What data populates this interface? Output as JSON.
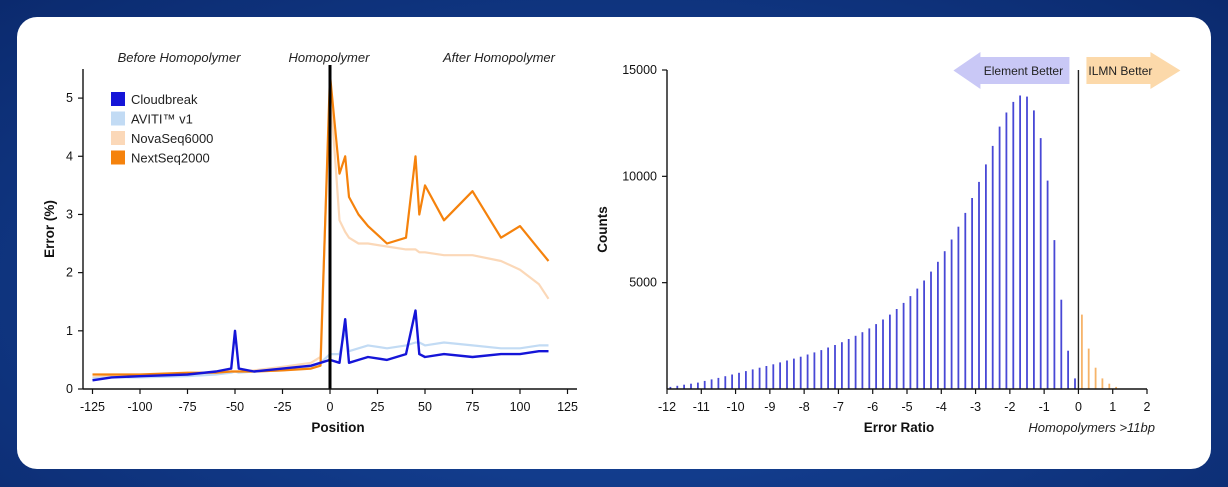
{
  "chart_data": [
    {
      "type": "line",
      "xlabel": "Position",
      "ylabel": "Error (%)",
      "xlim": [
        -130,
        130
      ],
      "ylim": [
        0,
        5.5
      ],
      "xticks": [
        "-125",
        "-100",
        "-75",
        "-50",
        "-25",
        "0",
        "25",
        "50",
        "75",
        "100",
        "125"
      ],
      "yticks": [
        "0",
        "1",
        "2",
        "3",
        "4",
        "5"
      ],
      "sections": [
        "Before Homopolymer",
        "Homopolymer",
        "After Homopolymer"
      ],
      "legend_position": "top-left",
      "series": [
        {
          "name": "Cloudbreak",
          "color": "#1515d8"
        },
        {
          "name": "AVITI™ v1",
          "color": "#c2dbf4"
        },
        {
          "name": "NovaSeq6000",
          "color": "#fbd8b8"
        },
        {
          "name": "NextSeq2000",
          "color": "#f5820c"
        }
      ],
      "x": [
        -125,
        -115,
        -100,
        -75,
        -60,
        -52,
        -50,
        -48,
        -40,
        -25,
        -10,
        -5,
        0,
        5,
        8,
        10,
        15,
        20,
        30,
        40,
        45,
        47,
        50,
        60,
        75,
        90,
        100,
        110,
        115
      ],
      "series_values": {
        "Cloudbreak": [
          0.15,
          0.2,
          0.22,
          0.25,
          0.3,
          0.35,
          1.0,
          0.35,
          0.3,
          0.35,
          0.4,
          0.45,
          0.5,
          0.45,
          1.2,
          0.45,
          0.5,
          0.55,
          0.5,
          0.6,
          1.35,
          0.6,
          0.55,
          0.6,
          0.55,
          0.6,
          0.6,
          0.65,
          0.65
        ],
        "AVITI™ v1": [
          0.18,
          0.2,
          0.2,
          0.22,
          0.25,
          0.28,
          0.3,
          0.28,
          0.3,
          0.32,
          0.38,
          0.45,
          0.6,
          0.6,
          1.0,
          0.65,
          0.7,
          0.75,
          0.7,
          0.75,
          0.8,
          0.8,
          0.75,
          0.8,
          0.75,
          0.7,
          0.7,
          0.75,
          0.75
        ],
        "NovaSeq6000": [
          0.2,
          0.22,
          0.23,
          0.25,
          0.28,
          0.3,
          0.3,
          0.3,
          0.32,
          0.38,
          0.45,
          0.55,
          5.2,
          2.9,
          2.7,
          2.6,
          2.5,
          2.5,
          2.45,
          2.4,
          2.4,
          2.35,
          2.35,
          2.3,
          2.3,
          2.2,
          2.05,
          1.8,
          1.55
        ],
        "NextSeq2000": [
          0.25,
          0.25,
          0.25,
          0.28,
          0.28,
          0.3,
          0.3,
          0.3,
          0.3,
          0.32,
          0.35,
          0.4,
          5.4,
          3.7,
          4.0,
          3.3,
          3.0,
          2.8,
          2.5,
          2.6,
          4.0,
          3.0,
          3.5,
          2.9,
          3.4,
          2.6,
          2.8,
          2.4,
          2.2
        ]
      }
    },
    {
      "type": "bar",
      "xlabel": "Error Ratio",
      "ylabel": "Counts",
      "xlim": [
        -12,
        2
      ],
      "ylim": [
        0,
        15000
      ],
      "xticks": [
        "-12",
        "-11",
        "-10",
        "-9",
        "-8",
        "-7",
        "-6",
        "-5",
        "-4",
        "-3",
        "-2",
        "-1",
        "0",
        "1",
        "2"
      ],
      "yticks": [
        "5000",
        "10000",
        "15000"
      ],
      "annotations": [
        "Element Better",
        "ILMN Better"
      ],
      "note": "Homopolymers >11bp",
      "colors": {
        "negative": "#4848d6",
        "positive": "#f6b46a"
      },
      "bin_centers": [
        -11.9,
        -11.7,
        -11.5,
        -11.3,
        -11.1,
        -10.9,
        -10.7,
        -10.5,
        -10.3,
        -10.1,
        -9.9,
        -9.7,
        -9.5,
        -9.3,
        -9.1,
        -8.9,
        -8.7,
        -8.5,
        -8.3,
        -8.1,
        -7.9,
        -7.7,
        -7.5,
        -7.3,
        -7.1,
        -6.9,
        -6.7,
        -6.5,
        -6.3,
        -6.1,
        -5.9,
        -5.7,
        -5.5,
        -5.3,
        -5.1,
        -4.9,
        -4.7,
        -4.5,
        -4.3,
        -4.1,
        -3.9,
        -3.7,
        -3.5,
        -3.3,
        -3.1,
        -2.9,
        -2.7,
        -2.5,
        -2.3,
        -2.1,
        -1.9,
        -1.7,
        -1.5,
        -1.3,
        -1.1,
        -0.9,
        -0.7,
        -0.5,
        -0.3,
        -0.1,
        0.1,
        0.3,
        0.5,
        0.7,
        0.9,
        1.1
      ],
      "values": [
        100,
        150,
        200,
        250,
        300,
        380,
        450,
        520,
        600,
        680,
        760,
        840,
        920,
        1000,
        1080,
        1160,
        1250,
        1340,
        1430,
        1520,
        1620,
        1720,
        1830,
        1950,
        2070,
        2200,
        2350,
        2500,
        2670,
        2850,
        3050,
        3270,
        3500,
        3760,
        4050,
        4370,
        4720,
        5100,
        5520,
        5980,
        6480,
        7030,
        7630,
        8280,
        8980,
        9740,
        10560,
        11430,
        12340,
        13000,
        13500,
        13800,
        13750,
        13100,
        11800,
        9800,
        7000,
        4200,
        1800,
        500,
        3500,
        1900,
        1000,
        500,
        250,
        100
      ]
    }
  ]
}
